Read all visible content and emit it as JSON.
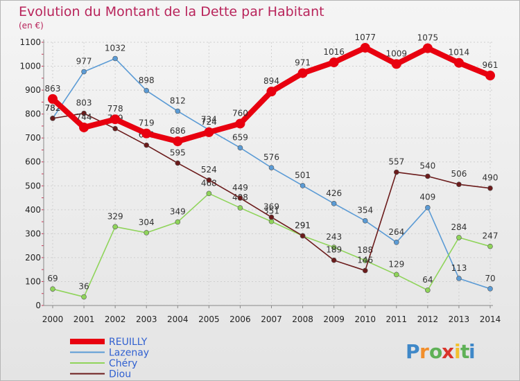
{
  "chart_data": {
    "type": "line",
    "title": "Evolution du Montant de la Dette par Habitant",
    "subtitle": "(en €)",
    "x": [
      "2000",
      "2001",
      "2002",
      "2003",
      "2004",
      "2005",
      "2006",
      "2007",
      "2008",
      "2009",
      "2010",
      "2011",
      "2012",
      "2013",
      "2014"
    ],
    "ylim": [
      0,
      1100
    ],
    "yticks": [
      0,
      100,
      200,
      300,
      400,
      500,
      600,
      700,
      800,
      900,
      1000,
      1100
    ],
    "grid": true,
    "legend_position": "bottom-left",
    "series": [
      {
        "name": "REUILLY",
        "color": "#e8000f",
        "values": [
          863,
          744,
          778,
          719,
          686,
          724,
          760,
          894,
          971,
          1016,
          1077,
          1009,
          1075,
          1014,
          961
        ]
      },
      {
        "name": "Lazenay",
        "color": "#5b9bd5",
        "values": [
          782,
          977,
          1032,
          898,
          812,
          734,
          659,
          576,
          501,
          426,
          354,
          264,
          409,
          113,
          70
        ]
      },
      {
        "name": "Chéry",
        "color": "#8fd45a",
        "values": [
          69,
          36,
          329,
          304,
          349,
          468,
          408,
          351,
          291,
          243,
          188,
          129,
          64,
          284,
          247
        ]
      },
      {
        "name": "Diou",
        "color": "#6b1b1b",
        "values": [
          782,
          803,
          739,
          670,
          595,
          524,
          449,
          369,
          291,
          189,
          146,
          557,
          540,
          506,
          490
        ]
      }
    ]
  },
  "brand": {
    "text": "Proxiti",
    "letters": [
      "P",
      "r",
      "o",
      "x",
      "i",
      "t",
      "i"
    ],
    "colors": [
      "#3f88c8",
      "#f28e2b",
      "#5fb157",
      "#d9342b",
      "#f2c12e",
      "#5fb157",
      "#3f88c8"
    ]
  }
}
